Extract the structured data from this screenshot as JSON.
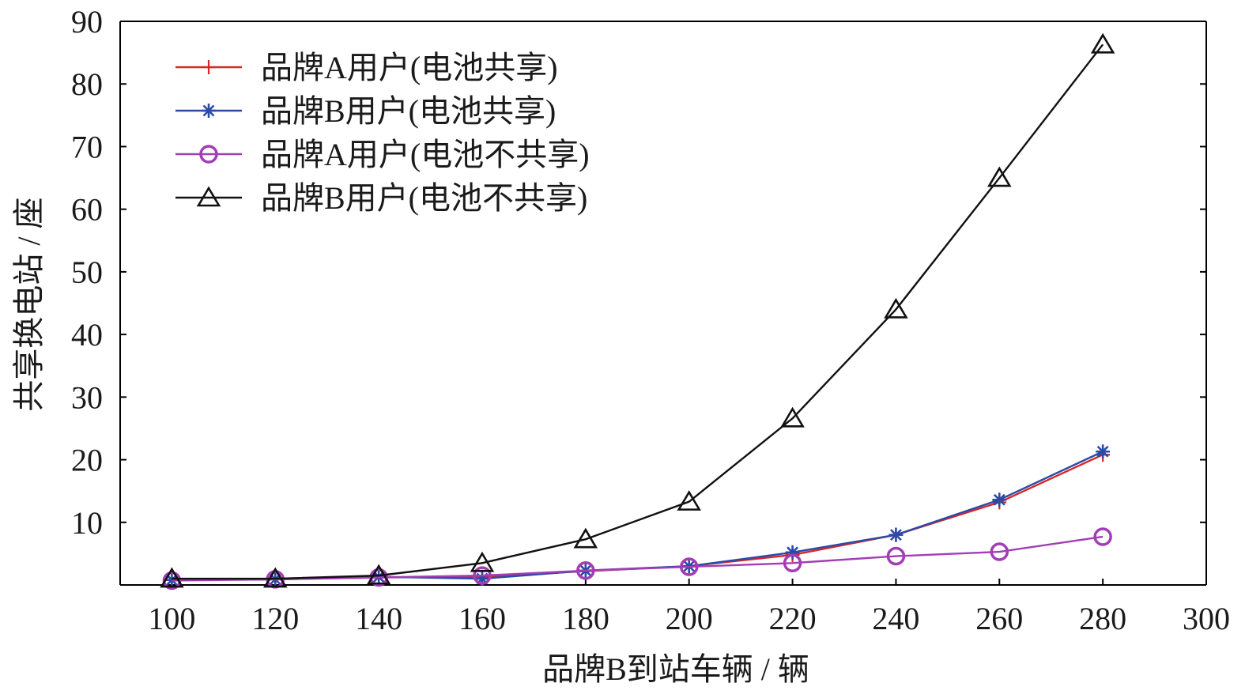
{
  "chart_data": {
    "type": "line",
    "xlabel": "品牌B到站车辆 / 辆",
    "ylabel": "共享换电站 / 座",
    "xlim": [
      90,
      300
    ],
    "ylim": [
      0,
      90
    ],
    "xticks": [
      100,
      120,
      140,
      160,
      180,
      200,
      220,
      240,
      260,
      280,
      300
    ],
    "yticks": [
      10,
      20,
      30,
      40,
      50,
      60,
      70,
      80,
      90
    ],
    "grid": false,
    "legend_position": "top-left",
    "x": [
      100,
      120,
      140,
      160,
      180,
      200,
      220,
      240,
      260,
      280
    ],
    "series": [
      {
        "name": "品牌A用户(电池共享)",
        "color": "#d62728",
        "marker": "plus",
        "values": [
          0.8,
          0.9,
          1.2,
          1.3,
          2.2,
          3.0,
          4.8,
          8.0,
          13.2,
          20.8
        ]
      },
      {
        "name": "品牌B用户(电池共享)",
        "color": "#2b4aa8",
        "marker": "asterisk",
        "values": [
          0.8,
          0.9,
          1.3,
          1.0,
          2.3,
          3.0,
          5.2,
          8.0,
          13.6,
          21.3
        ]
      },
      {
        "name": "品牌A用户(电池不共享)",
        "color": "#a23db5",
        "marker": "circle",
        "values": [
          0.7,
          0.9,
          1.2,
          1.5,
          2.3,
          2.9,
          3.5,
          4.6,
          5.3,
          7.7
        ]
      },
      {
        "name": "品牌B用户(电池不共享)",
        "color": "#111111",
        "marker": "triangle",
        "values": [
          1.0,
          1.0,
          1.5,
          3.5,
          7.3,
          13.3,
          26.6,
          44.0,
          65.0,
          86.3
        ]
      }
    ]
  }
}
